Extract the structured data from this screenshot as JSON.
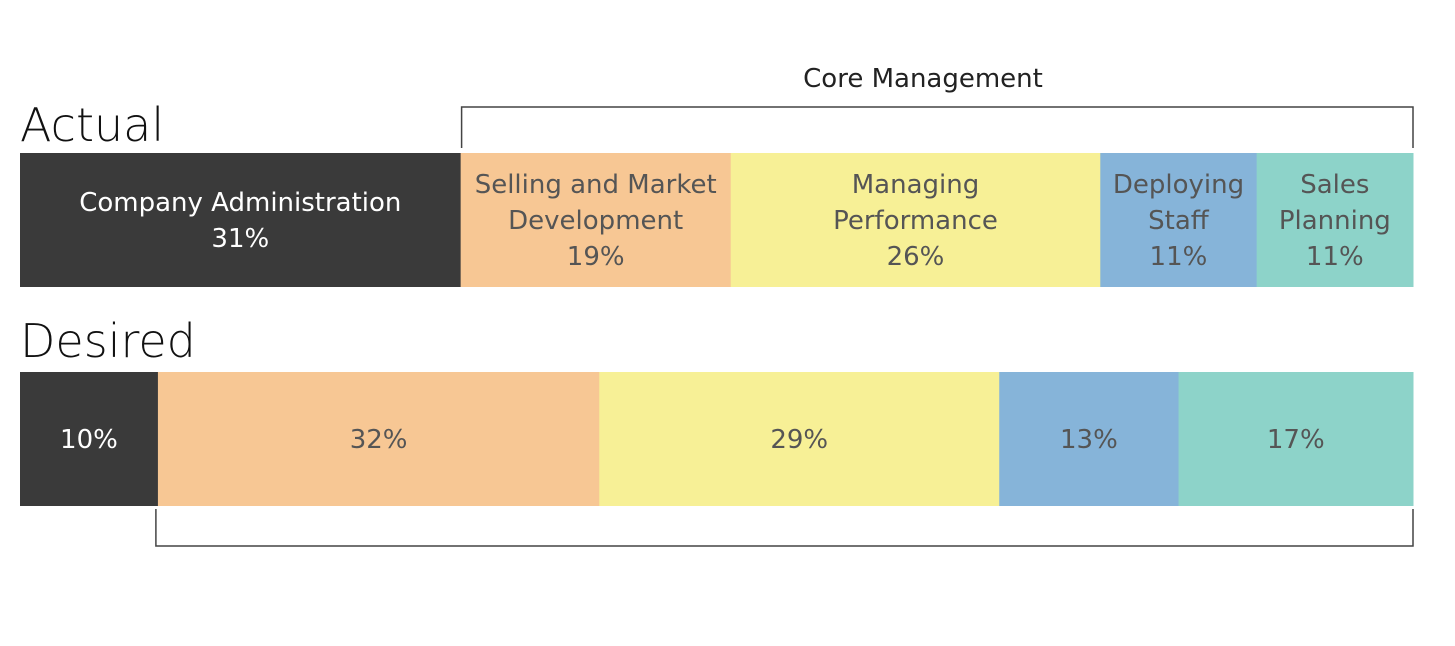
{
  "chart_data": {
    "type": "bar",
    "orientation": "horizontal-stacked",
    "unit": "%",
    "categories": [
      "Company Administration",
      "Selling and Market Development",
      "Managing Performance",
      "Deploying Staff",
      "Sales Planning"
    ],
    "category_label_lines": [
      [
        "Company Administration"
      ],
      [
        "Selling and Market",
        "Development"
      ],
      [
        "Managing",
        "Performance"
      ],
      [
        "Deploying",
        "Staff"
      ],
      [
        "Sales",
        "Planning"
      ]
    ],
    "colors": [
      "#3a3a3a",
      "#f7c794",
      "#f7f096",
      "#86b4d9",
      "#8dd3c9"
    ],
    "text_colors": [
      "#ffffff",
      "#555555",
      "#555555",
      "#555555",
      "#555555"
    ],
    "series": [
      {
        "name": "Actual",
        "values": [
          31,
          19,
          26,
          11,
          11
        ]
      },
      {
        "name": "Desired",
        "values": [
          10,
          32,
          29,
          13,
          17
        ]
      }
    ],
    "bracket": {
      "label": "Core Management",
      "covers": [
        "Selling and Market Development",
        "Managing Performance",
        "Deploying Staff",
        "Sales Planning"
      ]
    },
    "title": "",
    "xlabel": "",
    "ylabel": "",
    "grid": false
  }
}
